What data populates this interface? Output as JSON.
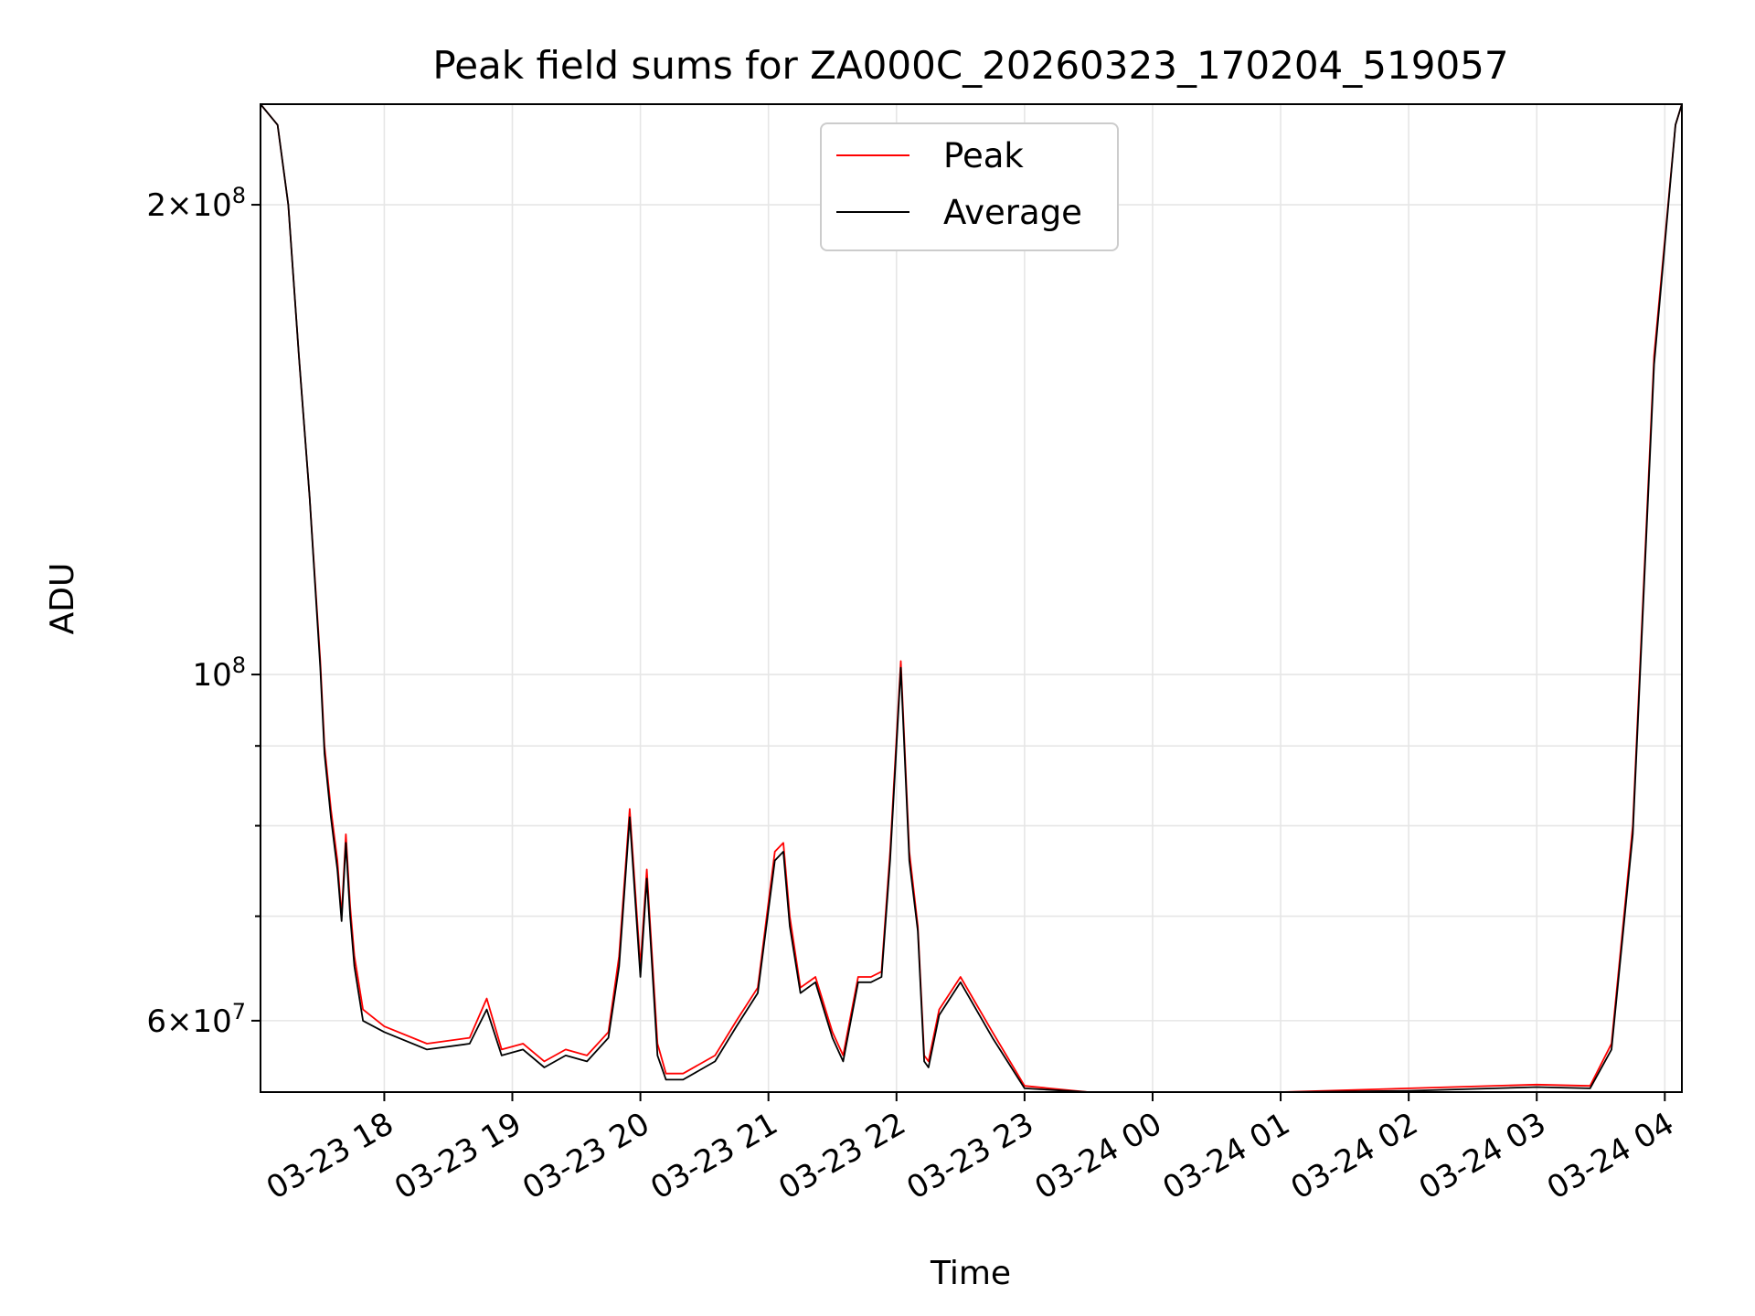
{
  "chart_data": {
    "type": "line",
    "title": "Peak field sums for ZA000C_20260323_170204_519057",
    "xlabel": "Time",
    "ylabel": "ADU",
    "yscale": "log",
    "ylim": [
      54000000,
      232000000
    ],
    "xlim": [
      "03-23 17:02",
      "03-24 04:08"
    ],
    "grid": true,
    "legend": "upper center",
    "x_ticks": [
      "03-23 18",
      "03-23 19",
      "03-23 20",
      "03-23 21",
      "03-23 22",
      "03-23 23",
      "03-24 00",
      "03-24 01",
      "03-24 02",
      "03-24 03",
      "03-24 04"
    ],
    "y_ticks": [
      {
        "value": 200000000,
        "mantissa": "2",
        "exponent": "8"
      },
      {
        "value": 100000000,
        "mantissa": "",
        "exponent": "8"
      },
      {
        "value": 60000000,
        "mantissa": "6",
        "exponent": "7"
      }
    ],
    "y_minor_ticks": [
      70000000,
      80000000,
      90000000
    ],
    "series": [
      {
        "name": "Peak",
        "color": "#ff0000",
        "x": [
          "03-23 17:02",
          "03-23 17:10",
          "03-23 17:15",
          "03-23 17:20",
          "03-23 17:25",
          "03-23 17:30",
          "03-23 17:32",
          "03-23 17:35",
          "03-23 17:38",
          "03-23 17:40",
          "03-23 17:42",
          "03-23 17:44",
          "03-23 17:46",
          "03-23 17:50",
          "03-23 18:00",
          "03-23 18:20",
          "03-23 18:40",
          "03-23 18:48",
          "03-23 18:55",
          "03-23 19:05",
          "03-23 19:15",
          "03-23 19:25",
          "03-23 19:35",
          "03-23 19:45",
          "03-23 19:50",
          "03-23 19:55",
          "03-23 20:00",
          "03-23 20:03",
          "03-23 20:08",
          "03-23 20:12",
          "03-23 20:20",
          "03-23 20:35",
          "03-23 20:45",
          "03-23 20:55",
          "03-23 21:03",
          "03-23 21:07",
          "03-23 21:10",
          "03-23 21:15",
          "03-23 21:22",
          "03-23 21:30",
          "03-23 21:35",
          "03-23 21:42",
          "03-23 21:48",
          "03-23 21:53",
          "03-23 21:57",
          "03-23 22:02",
          "03-23 22:06",
          "03-23 22:10",
          "03-23 22:13",
          "03-23 22:15",
          "03-23 22:20",
          "03-23 22:30",
          "03-23 22:45",
          "03-23 23:00",
          "03-23 23:30",
          "03-24 00:00",
          "03-24 01:00",
          "03-24 02:00",
          "03-24 03:00",
          "03-24 03:25",
          "03-24 03:35",
          "03-24 03:45",
          "03-24 03:55",
          "03-24 04:05",
          "03-24 04:08"
        ],
        "values": [
          232000000,
          225000000,
          200000000,
          160000000,
          130000000,
          102000000,
          90000000,
          82000000,
          76000000,
          70000000,
          79000000,
          71000000,
          66000000,
          61000000,
          59500000,
          58000000,
          58500000,
          62000000,
          57500000,
          58000000,
          56500000,
          57500000,
          57000000,
          59000000,
          66000000,
          82000000,
          65000000,
          75000000,
          58000000,
          55500000,
          55500000,
          57000000,
          60000000,
          63000000,
          77000000,
          78000000,
          70000000,
          63000000,
          64000000,
          59000000,
          57000000,
          64000000,
          64000000,
          64500000,
          77000000,
          102000000,
          77000000,
          69000000,
          57000000,
          56500000,
          61000000,
          64000000,
          59000000,
          54500000,
          53500000,
          53300000,
          53700000,
          54300000,
          54600000,
          54500000,
          58000000,
          80000000,
          160000000,
          225000000,
          232000000
        ]
      },
      {
        "name": "Average",
        "color": "#000000",
        "x": [
          "03-23 17:02",
          "03-23 17:10",
          "03-23 17:15",
          "03-23 17:20",
          "03-23 17:25",
          "03-23 17:30",
          "03-23 17:32",
          "03-23 17:35",
          "03-23 17:38",
          "03-23 17:40",
          "03-23 17:42",
          "03-23 17:44",
          "03-23 17:46",
          "03-23 17:50",
          "03-23 18:00",
          "03-23 18:20",
          "03-23 18:40",
          "03-23 18:48",
          "03-23 18:55",
          "03-23 19:05",
          "03-23 19:15",
          "03-23 19:25",
          "03-23 19:35",
          "03-23 19:45",
          "03-23 19:50",
          "03-23 19:55",
          "03-23 20:00",
          "03-23 20:03",
          "03-23 20:08",
          "03-23 20:12",
          "03-23 20:20",
          "03-23 20:35",
          "03-23 20:45",
          "03-23 20:55",
          "03-23 21:03",
          "03-23 21:07",
          "03-23 21:10",
          "03-23 21:15",
          "03-23 21:22",
          "03-23 21:30",
          "03-23 21:35",
          "03-23 21:42",
          "03-23 21:48",
          "03-23 21:53",
          "03-23 21:57",
          "03-23 22:02",
          "03-23 22:06",
          "03-23 22:10",
          "03-23 22:13",
          "03-23 22:15",
          "03-23 22:20",
          "03-23 22:30",
          "03-23 22:45",
          "03-23 23:00",
          "03-23 23:30",
          "03-24 00:00",
          "03-24 01:00",
          "03-24 02:00",
          "03-24 03:00",
          "03-24 03:25",
          "03-24 03:35",
          "03-24 03:45",
          "03-24 03:55",
          "03-24 04:05",
          "03-24 04:08"
        ],
        "values": [
          232000000,
          225000000,
          200000000,
          160000000,
          130000000,
          101000000,
          89000000,
          81000000,
          75000000,
          69500000,
          78000000,
          70000000,
          65000000,
          60000000,
          59000000,
          57500000,
          58000000,
          61000000,
          57000000,
          57500000,
          56000000,
          57000000,
          56500000,
          58500000,
          65000000,
          81000000,
          64000000,
          74000000,
          57000000,
          55000000,
          55000000,
          56500000,
          59500000,
          62500000,
          76000000,
          77000000,
          69000000,
          62500000,
          63500000,
          58500000,
          56500000,
          63500000,
          63500000,
          64000000,
          76000000,
          101000000,
          76000000,
          68500000,
          56500000,
          56000000,
          60500000,
          63500000,
          58500000,
          54300000,
          53300000,
          53100000,
          53500000,
          54100000,
          54400000,
          54300000,
          57500000,
          79000000,
          158000000,
          225000000,
          232000000
        ]
      }
    ]
  }
}
